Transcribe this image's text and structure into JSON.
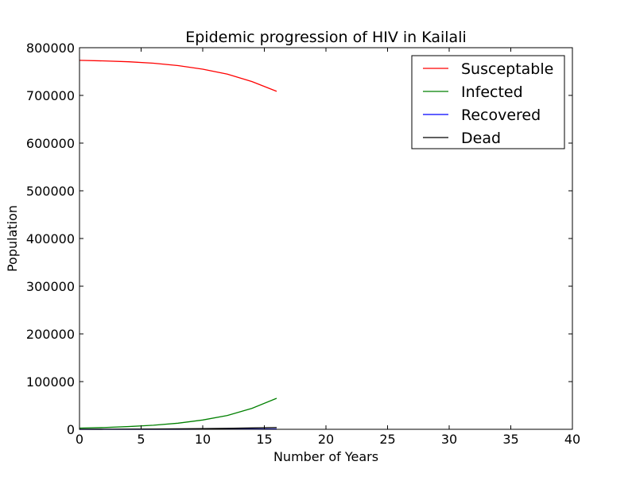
{
  "chart_data": {
    "type": "line",
    "title": "Epidemic progression of HIV in Kailali",
    "xlabel": "Number of Years",
    "ylabel": "Population",
    "xlim": [
      0,
      40
    ],
    "ylim": [
      0,
      800000
    ],
    "xticks": [
      0,
      5,
      10,
      15,
      20,
      25,
      30,
      35,
      40
    ],
    "yticks": [
      0,
      100000,
      200000,
      300000,
      400000,
      500000,
      600000,
      700000,
      800000
    ],
    "xtick_labels": [
      "0",
      "5",
      "10",
      "15",
      "20",
      "25",
      "30",
      "35",
      "40"
    ],
    "ytick_labels": [
      "0",
      "100000",
      "200000",
      "300000",
      "400000",
      "500000",
      "600000",
      "700000",
      "800000"
    ],
    "grid": false,
    "legend_position": "top-right",
    "series": [
      {
        "name": "Susceptable",
        "color": "#ff0000",
        "x": [
          0,
          2,
          4,
          6,
          8,
          10,
          12,
          14,
          16
        ],
        "y": [
          773500,
          772300,
          770500,
          767500,
          762500,
          755000,
          744500,
          729000,
          708500
        ]
      },
      {
        "name": "Infected",
        "color": "#008000",
        "x": [
          0,
          2,
          4,
          6,
          8,
          10,
          12,
          14,
          16
        ],
        "y": [
          2500,
          3800,
          5700,
          8500,
          12800,
          19500,
          29000,
          44000,
          65000
        ]
      },
      {
        "name": "Recovered",
        "color": "#0000ff",
        "x": [
          0,
          2,
          4,
          6,
          8,
          10,
          12,
          14,
          16
        ],
        "y": [
          0,
          10,
          30,
          60,
          110,
          180,
          280,
          420,
          600
        ]
      },
      {
        "name": "Dead",
        "color": "#000000",
        "x": [
          0,
          2,
          4,
          6,
          8,
          10,
          12,
          14,
          16
        ],
        "y": [
          0,
          150,
          350,
          650,
          1000,
          1500,
          2100,
          2800,
          3700
        ]
      }
    ]
  }
}
